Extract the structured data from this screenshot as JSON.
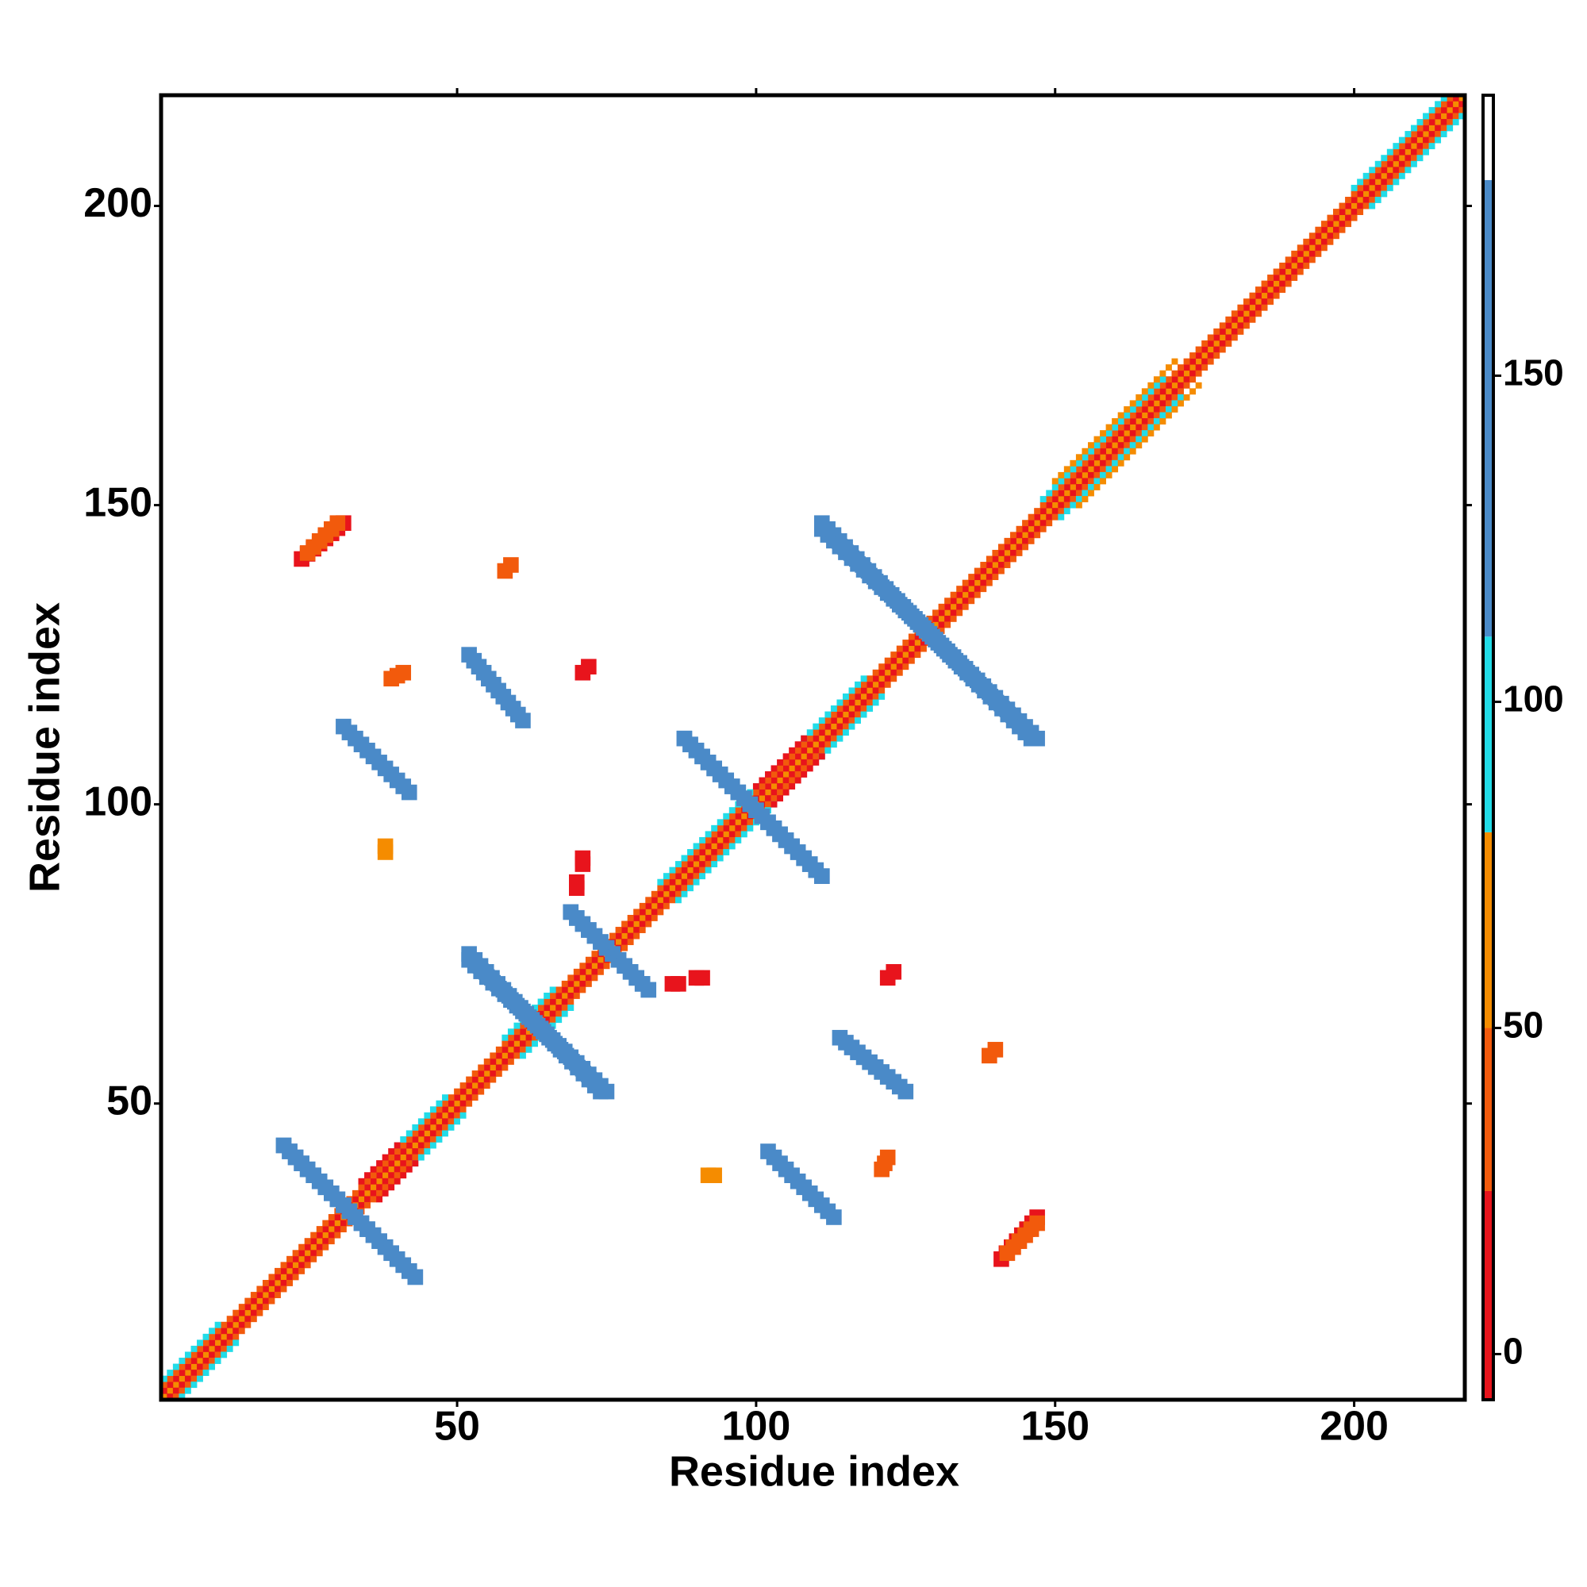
{
  "chart_data": {
    "type": "contact_map",
    "xlabel": "Residue index",
    "ylabel": "Residue index",
    "xlim": [
      0.5,
      218.5
    ],
    "ylim": [
      0.5,
      218.5
    ],
    "xticks": [
      50,
      100,
      150,
      200
    ],
    "yticks": [
      50,
      100,
      150,
      200
    ],
    "symmetric": true,
    "colorbar": {
      "lim": [
        -7,
        193
      ],
      "ticks": [
        0,
        50,
        100,
        150
      ],
      "bands": [
        {
          "from": -7,
          "to": 25,
          "color": "#e8141c"
        },
        {
          "from": 25,
          "to": 50,
          "color": "#f25a0c"
        },
        {
          "from": 50,
          "to": 80,
          "color": "#f58c00"
        },
        {
          "from": 80,
          "to": 110,
          "color": "#22dce8"
        },
        {
          "from": 110,
          "to": 180,
          "color": "#4a8ac8"
        },
        {
          "from": 180,
          "to": 193,
          "color": "#ffffff"
        }
      ]
    },
    "segments": [
      {
        "from": [
          1,
          1
        ],
        "to": [
          218,
          218
        ],
        "value": 60
      },
      {
        "from": [
          1,
          2
        ],
        "to": [
          217,
          218
        ],
        "value": 10
      },
      {
        "from": [
          1,
          3
        ],
        "to": [
          216,
          218
        ],
        "value": 40
      },
      {
        "from": [
          1,
          4
        ],
        "to": [
          10,
          13
        ],
        "value": 95
      },
      {
        "from": [
          40,
          43
        ],
        "to": [
          48,
          51
        ],
        "value": 95
      },
      {
        "from": [
          58,
          61
        ],
        "to": [
          66,
          69
        ],
        "value": 95
      },
      {
        "from": [
          84,
          87
        ],
        "to": [
          100,
          103
        ],
        "value": 95
      },
      {
        "from": [
          108,
          111
        ],
        "to": [
          118,
          121
        ],
        "value": 95
      },
      {
        "from": [
          148,
          151
        ],
        "to": [
          168,
          171
        ],
        "value": 90
      },
      {
        "from": [
          200,
          203
        ],
        "to": [
          215,
          218
        ],
        "value": 95
      },
      {
        "from": [
          150,
          154
        ],
        "to": [
          170,
          174
        ],
        "value": 55
      },
      {
        "from": [
          34,
          37
        ],
        "to": [
          40,
          43
        ],
        "value": 10
      },
      {
        "from": [
          100,
          103
        ],
        "to": [
          108,
          111
        ],
        "value": 10
      },
      {
        "from": [
          111,
          146
        ],
        "to": [
          147,
          111
        ],
        "value": 140
      },
      {
        "from": [
          88,
          111
        ],
        "to": [
          111,
          88
        ],
        "value": 140
      },
      {
        "from": [
          52,
          74
        ],
        "to": [
          75,
          52
        ],
        "value": 130
      },
      {
        "from": [
          69,
          82
        ],
        "to": [
          82,
          69
        ],
        "value": 140
      },
      {
        "from": [
          21,
          43
        ],
        "to": [
          43,
          21
        ],
        "value": 140
      },
      {
        "from": [
          102,
          42
        ],
        "to": [
          113,
          31
        ],
        "value": 140
      },
      {
        "from": [
          114,
          61
        ],
        "to": [
          125,
          52
        ],
        "value": 140
      },
      {
        "from": [
          141,
          24
        ],
        "to": [
          147,
          31
        ],
        "value": 15
      },
      {
        "from": [
          142,
          25
        ],
        "to": [
          147,
          30
        ],
        "value": 40
      },
      {
        "from": [
          121,
          39
        ],
        "to": [
          122,
          41
        ],
        "value": 40
      },
      {
        "from": [
          70,
          86
        ],
        "to": [
          70,
          87
        ],
        "value": 10
      },
      {
        "from": [
          90,
          71
        ],
        "to": [
          91,
          71
        ],
        "value": 10
      },
      {
        "from": [
          139,
          58
        ],
        "to": [
          140,
          59
        ],
        "value": 40
      },
      {
        "from": [
          71,
          122
        ],
        "to": [
          72,
          123
        ],
        "value": 20
      },
      {
        "from": [
          38,
          92
        ],
        "to": [
          38,
          93
        ],
        "value": 50
      }
    ]
  }
}
